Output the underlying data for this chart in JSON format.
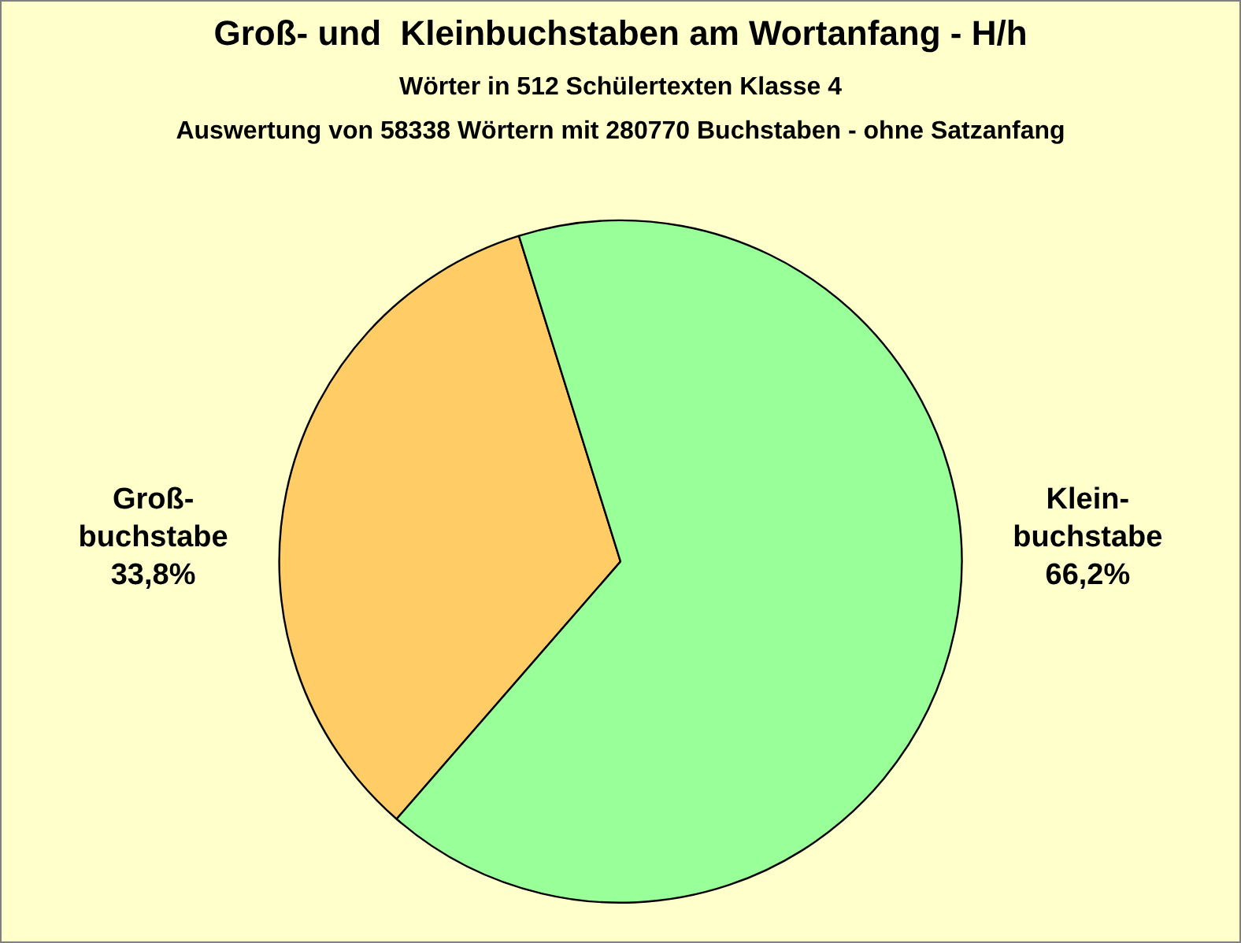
{
  "chart_data": {
    "type": "pie",
    "title": "Groß- und  Kleinbuchstaben am Wortanfang - H/h",
    "subtitle": "Wörter in 512 Schülertexten Klasse 4\nAuswertung von 58338 Wörtern mit 280770 Buchstaben - ohne Satzanfang",
    "categories": [
      "Groß-\nbuchstabe",
      "Klein-\nbuchstabe"
    ],
    "values": [
      33.8,
      66.2
    ],
    "colors": [
      "#ffcc66",
      "#99ff99"
    ],
    "value_labels": [
      "33,8%",
      "66,2%"
    ],
    "legend": false
  }
}
